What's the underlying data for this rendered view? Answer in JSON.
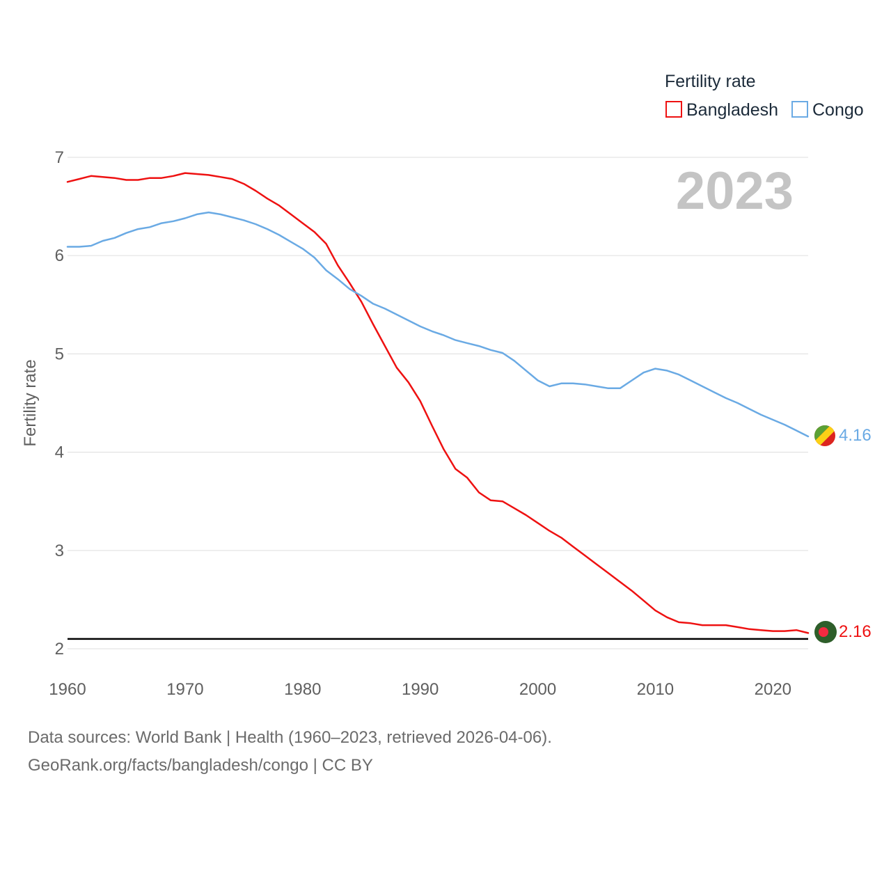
{
  "chart_data": {
    "type": "line",
    "ylabel": "Fertility rate",
    "legend_title": "Fertility rate",
    "legend_position": "top-right",
    "year_label": "2023",
    "xlim": [
      1960,
      2023
    ],
    "ylim": [
      2,
      7
    ],
    "x_ticks": [
      1960,
      1970,
      1980,
      1990,
      2000,
      2010,
      2020
    ],
    "y_ticks": [
      2,
      3,
      4,
      5,
      6,
      7
    ],
    "grid": true,
    "reference_line": {
      "value": 2.1,
      "color": "#000000"
    },
    "x": [
      1960,
      1961,
      1962,
      1963,
      1964,
      1965,
      1966,
      1967,
      1968,
      1969,
      1970,
      1971,
      1972,
      1973,
      1974,
      1975,
      1976,
      1977,
      1978,
      1979,
      1980,
      1981,
      1982,
      1983,
      1984,
      1985,
      1986,
      1987,
      1988,
      1989,
      1990,
      1991,
      1992,
      1993,
      1994,
      1995,
      1996,
      1997,
      1998,
      1999,
      2000,
      2001,
      2002,
      2003,
      2004,
      2005,
      2006,
      2007,
      2008,
      2009,
      2010,
      2011,
      2012,
      2013,
      2014,
      2015,
      2016,
      2017,
      2018,
      2019,
      2020,
      2021,
      2022,
      2023
    ],
    "series": [
      {
        "name": "Bangladesh",
        "color": "#ee1111",
        "end_label": "2.16",
        "values": [
          6.75,
          6.78,
          6.81,
          6.8,
          6.79,
          6.77,
          6.77,
          6.79,
          6.79,
          6.81,
          6.84,
          6.83,
          6.82,
          6.8,
          6.78,
          6.73,
          6.66,
          6.58,
          6.51,
          6.42,
          6.33,
          6.24,
          6.12,
          5.9,
          5.72,
          5.53,
          5.3,
          5.08,
          4.86,
          4.71,
          4.52,
          4.27,
          4.03,
          3.83,
          3.74,
          3.59,
          3.51,
          3.5,
          3.43,
          3.36,
          3.28,
          3.2,
          3.13,
          3.04,
          2.95,
          2.86,
          2.77,
          2.68,
          2.59,
          2.49,
          2.39,
          2.32,
          2.27,
          2.26,
          2.24,
          2.24,
          2.24,
          2.22,
          2.2,
          2.19,
          2.18,
          2.18,
          2.19,
          2.16
        ]
      },
      {
        "name": "Congo",
        "color": "#6aaae4",
        "end_label": "4.16",
        "values": [
          6.09,
          6.09,
          6.1,
          6.15,
          6.18,
          6.23,
          6.27,
          6.29,
          6.33,
          6.35,
          6.38,
          6.42,
          6.44,
          6.42,
          6.39,
          6.36,
          6.32,
          6.27,
          6.21,
          6.14,
          6.07,
          5.98,
          5.85,
          5.76,
          5.66,
          5.59,
          5.51,
          5.46,
          5.4,
          5.34,
          5.28,
          5.23,
          5.19,
          5.14,
          5.11,
          5.08,
          5.04,
          5.01,
          4.93,
          4.83,
          4.73,
          4.67,
          4.7,
          4.7,
          4.69,
          4.67,
          4.65,
          4.65,
          4.73,
          4.81,
          4.85,
          4.83,
          4.79,
          4.73,
          4.67,
          4.61,
          4.55,
          4.5,
          4.44,
          4.38,
          4.33,
          4.28,
          4.22,
          4.16
        ]
      }
    ]
  },
  "source_line1": "Data sources: World Bank | Health (1960–2023, retrieved 2026-04-06).",
  "source_line2": "GeoRank.org/facts/bangladesh/congo | CC BY"
}
